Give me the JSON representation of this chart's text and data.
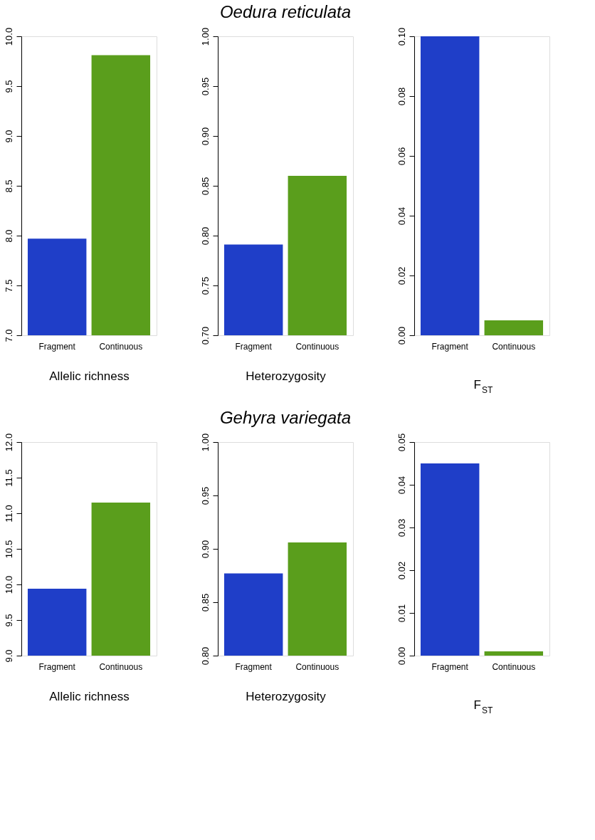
{
  "chart_data": [
    {
      "type": "bar",
      "categories": [
        "Fragment",
        "Continuous"
      ],
      "values": [
        7.97,
        9.81
      ],
      "colors": [
        "#1f3ec8",
        "#5a9e1c"
      ],
      "ylim": [
        7.0,
        10.0
      ],
      "yticks": [
        {
          "value": 7,
          "label": "7.0"
        },
        7.5,
        {
          "value": 8,
          "label": "8.0"
        },
        8.5,
        {
          "value": 9,
          "label": "9.0"
        },
        9.5,
        {
          "value": 10,
          "label": "10.0"
        }
      ],
      "xlabel": "Allelic richness",
      "grid": false
    },
    {
      "type": "bar",
      "title": "Oedura reticulata",
      "categories": [
        "Fragment",
        "Continuous"
      ],
      "values": [
        0.791,
        0.86
      ],
      "colors": [
        "#1f3ec8",
        "#5a9e1c"
      ],
      "ylim": [
        0.7,
        1.0
      ],
      "yticks": [
        {
          "value": 0.7,
          "label": "0.70"
        },
        0.75,
        {
          "value": 0.8,
          "label": "0.80"
        },
        0.85,
        {
          "value": 0.9,
          "label": "0.90"
        },
        0.95,
        {
          "value": 1.0,
          "label": "1.00"
        }
      ],
      "xlabel": "Heterozygosity",
      "grid": false
    },
    {
      "type": "bar",
      "categories": [
        "Fragment",
        "Continuous"
      ],
      "values": [
        0.1,
        0.005
      ],
      "colors": [
        "#1f3ec8",
        "#5a9e1c"
      ],
      "ylim": [
        0.0,
        0.1
      ],
      "yticks": [
        {
          "value": 0,
          "label": "0.00"
        },
        0.02,
        0.04,
        0.06,
        0.08,
        {
          "value": 0.1,
          "label": "0.10"
        }
      ],
      "xlabel": "F$_{ST}$",
      "grid": false
    },
    {
      "type": "bar",
      "categories": [
        "Fragment",
        "Continuous"
      ],
      "values": [
        9.94,
        11.15
      ],
      "colors": [
        "#1f3ec8",
        "#5a9e1c"
      ],
      "ylim": [
        9.0,
        12.0
      ],
      "yticks": [
        {
          "value": 9,
          "label": "9.0"
        },
        9.5,
        {
          "value": 10,
          "label": "10.0"
        },
        10.5,
        {
          "value": 11,
          "label": "11.0"
        },
        11.5,
        {
          "value": 12,
          "label": "12.0"
        }
      ],
      "xlabel": "Allelic richness",
      "grid": false
    },
    {
      "type": "bar",
      "title": "Gehyra variegata",
      "categories": [
        "Fragment",
        "Continuous"
      ],
      "values": [
        0.877,
        0.906
      ],
      "colors": [
        "#1f3ec8",
        "#5a9e1c"
      ],
      "ylim": [
        0.8,
        1.0
      ],
      "yticks": [
        {
          "value": 0.8,
          "label": "0.80"
        },
        0.85,
        {
          "value": 0.9,
          "label": "0.90"
        },
        0.95,
        {
          "value": 1.0,
          "label": "1.00"
        }
      ],
      "xlabel": "Heterozygosity",
      "grid": false
    },
    {
      "type": "bar",
      "categories": [
        "Fragment",
        "Continuous"
      ],
      "values": [
        0.045,
        0.001
      ],
      "colors": [
        "#1f3ec8",
        "#5a9e1c"
      ],
      "ylim": [
        0.0,
        0.05
      ],
      "yticks": [
        {
          "value": 0,
          "label": "0.00"
        },
        0.01,
        0.02,
        0.03,
        0.04,
        0.05
      ],
      "xlabel": "F$_{ST}$",
      "grid": false
    }
  ]
}
